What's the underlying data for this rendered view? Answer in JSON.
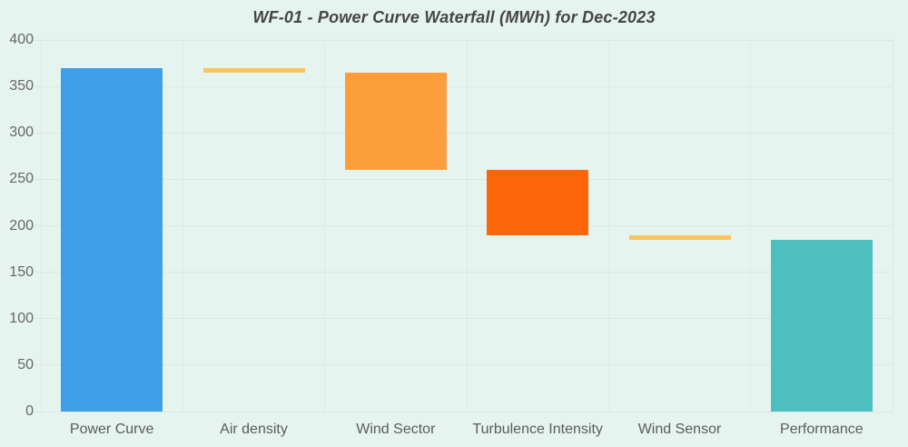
{
  "page": {
    "background_color": "#E6F4EF",
    "grid_color": "#D8E9E4",
    "title_color": "#454545",
    "tick_label_color": "#666666"
  },
  "chart_data": {
    "type": "bar",
    "subtype": "waterfall",
    "title": "WF-01 - Power Curve Waterfall (MWh) for Dec-2023",
    "xlabel": "",
    "ylabel": "",
    "ylim": [
      0,
      400
    ],
    "grid": true,
    "legend": null,
    "y_ticks": [
      0,
      50,
      100,
      150,
      200,
      250,
      300,
      350,
      400
    ],
    "categories": [
      "Power Curve",
      "Air density",
      "Wind Sector",
      "Turbulence Intensity",
      "Wind Sensor",
      "Performance"
    ],
    "bars": [
      {
        "label": "Power Curve",
        "from": 0,
        "to": 370,
        "delta": 370,
        "role": "total-start",
        "color": "#3D9FE8"
      },
      {
        "label": "Air density",
        "from": 365,
        "to": 370,
        "delta": -5,
        "role": "decrease",
        "color": "#FAC55C"
      },
      {
        "label": "Wind Sector",
        "from": 260,
        "to": 365,
        "delta": -105,
        "role": "decrease",
        "color": "#FD9E3C"
      },
      {
        "label": "Turbulence Intensity",
        "from": 190,
        "to": 260,
        "delta": -70,
        "role": "decrease",
        "color": "#FC6608"
      },
      {
        "label": "Wind Sensor",
        "from": 185,
        "to": 190,
        "delta": -5,
        "role": "decrease",
        "color": "#FAC55C"
      },
      {
        "label": "Performance",
        "from": 0,
        "to": 185,
        "delta": 185,
        "role": "total-end",
        "color": "#4DBFBF"
      }
    ]
  }
}
